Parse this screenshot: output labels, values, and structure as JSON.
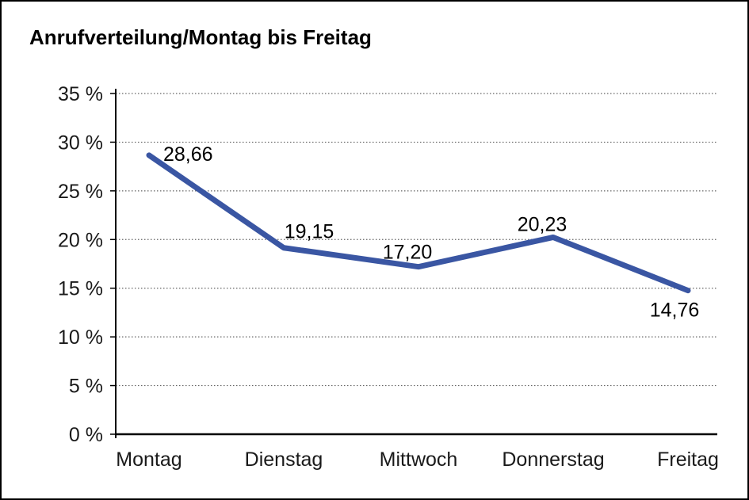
{
  "window": {
    "background": "#ffffff",
    "border_color": "#000000"
  },
  "chart_data": {
    "type": "line",
    "title": "Anrufverteilung/Montag bis Freitag",
    "categories": [
      "Montag",
      "Dienstag",
      "Mittwoch",
      "Donnerstag",
      "Freitag"
    ],
    "series": [
      {
        "name": "Anrufverteilung",
        "color": "#3A56A3",
        "values": [
          28.66,
          19.15,
          17.2,
          20.23,
          14.76
        ],
        "value_labels": [
          "28,66",
          "19,15",
          "17,20",
          "20,23",
          "14,76"
        ]
      }
    ],
    "xlabel": "",
    "ylabel": "",
    "ylim": [
      0,
      35
    ],
    "y_tick_step": 5,
    "y_tick_labels": [
      "0 %",
      "5 %",
      "10 %",
      "15 %",
      "20 %",
      "25 %",
      "30 %",
      "35 %"
    ],
    "grid": "horizontal-dotted",
    "legend": "none",
    "axis_color": "#000000",
    "grid_color": "#666666",
    "text_color": "#1a1a1a",
    "data_label_color": "#000000"
  }
}
